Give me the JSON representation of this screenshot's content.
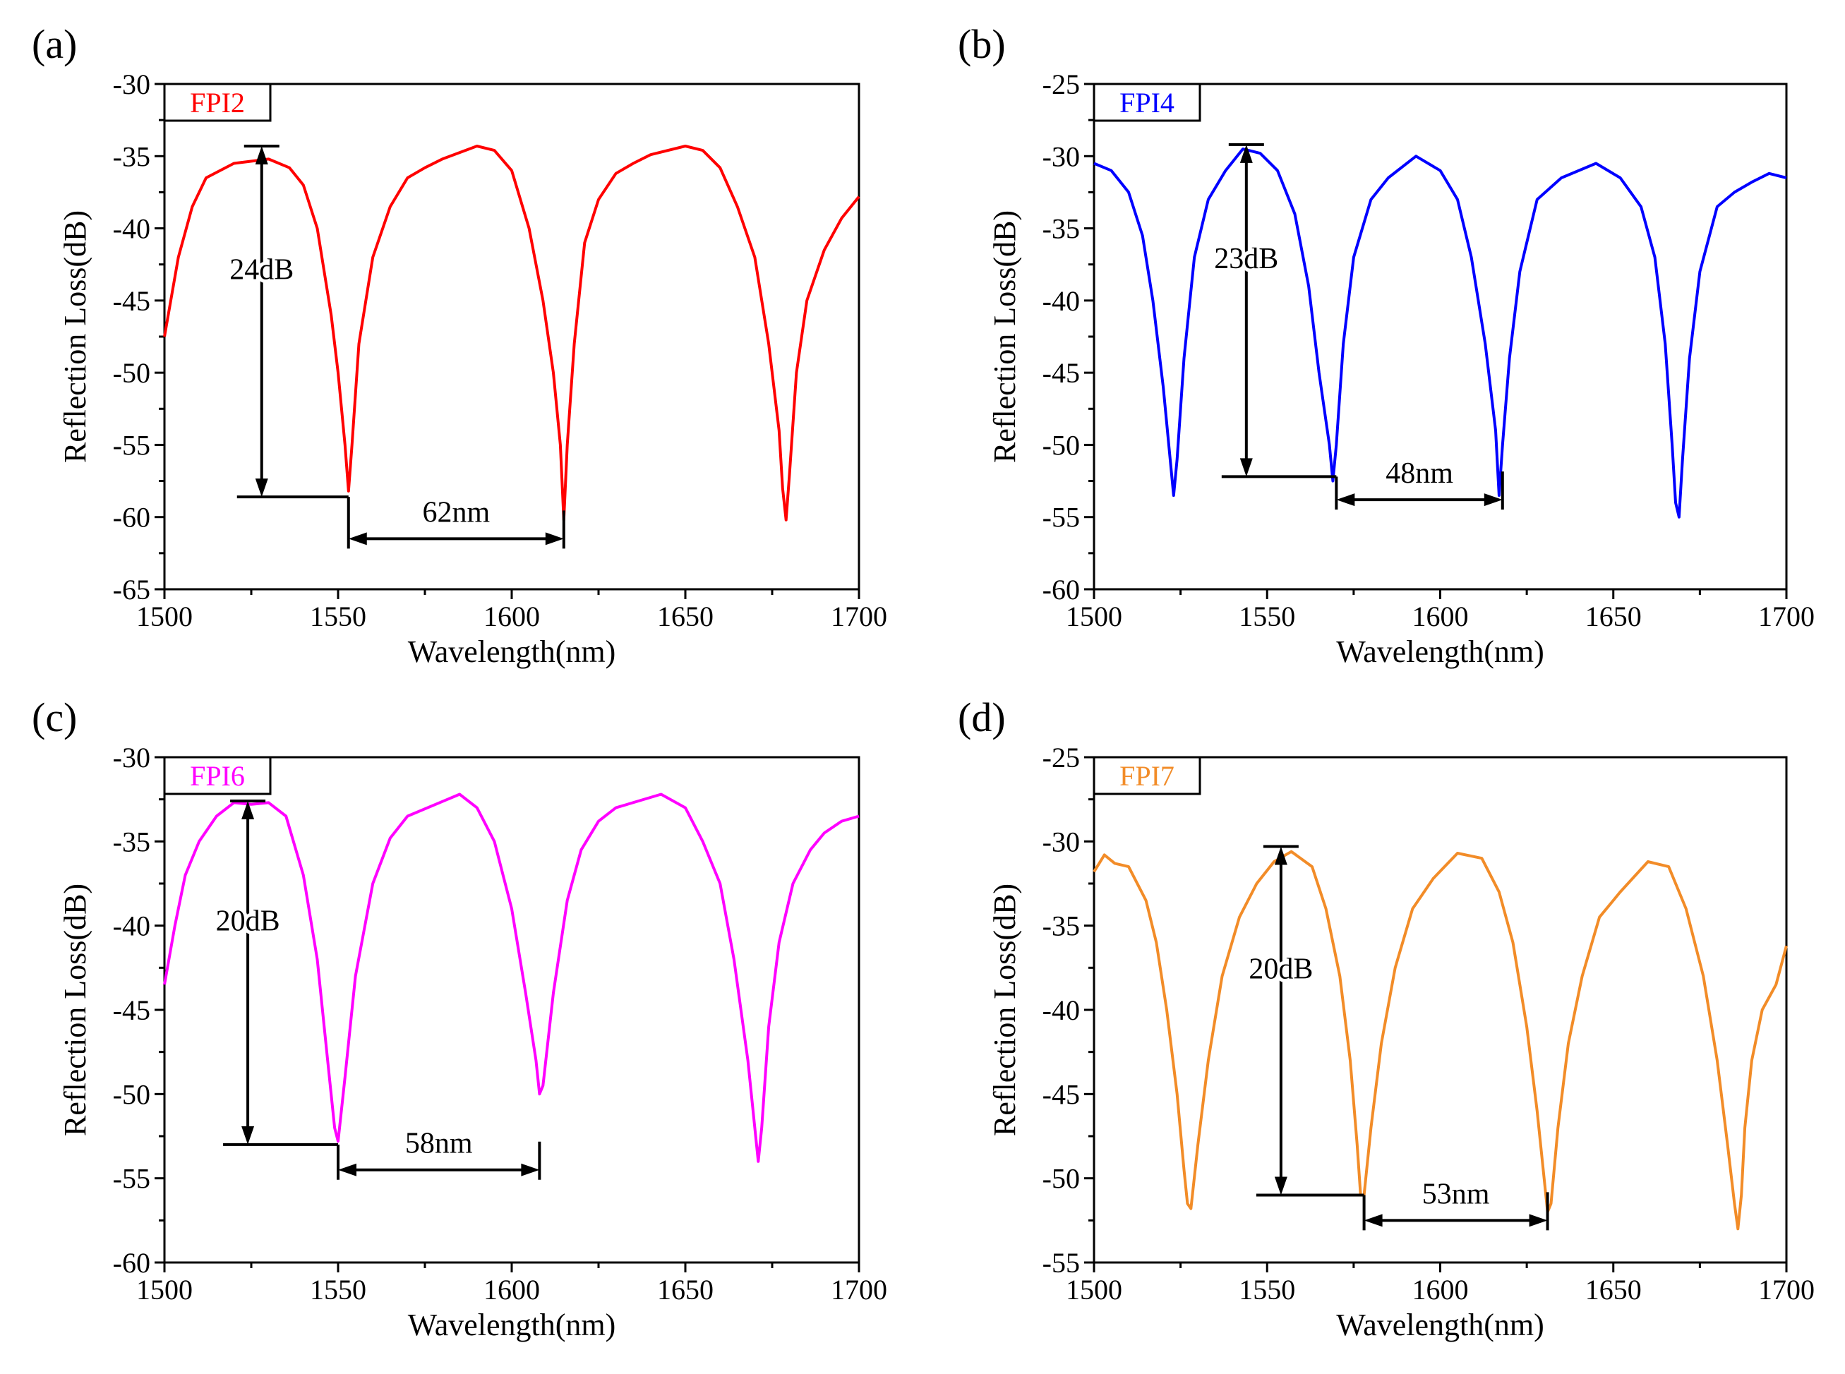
{
  "figure": {
    "xlabel": "Wavelength(nm)",
    "ylabel": "Reflection Loss(dB)"
  },
  "chart_data": [
    {
      "type": "line",
      "panel": "(a)",
      "legend": "FPI2",
      "color": "#ff0000",
      "xlabel": "Wavelength(nm)",
      "ylabel": "Reflection Loss(dB)",
      "xlim": [
        1500,
        1700
      ],
      "ylim": [
        -65,
        -30
      ],
      "xticks": [
        1500,
        1550,
        1600,
        1650,
        1700
      ],
      "yticks": [
        -30,
        -35,
        -40,
        -45,
        -50,
        -55,
        -60,
        -65
      ],
      "series": [
        {
          "name": "FPI2",
          "x": [
            1500,
            1504,
            1508,
            1512,
            1520,
            1530,
            1536,
            1540,
            1544,
            1548,
            1550,
            1552,
            1553,
            1554,
            1556,
            1560,
            1565,
            1570,
            1575,
            1580,
            1590,
            1595,
            1600,
            1605,
            1609,
            1612,
            1614,
            1615,
            1616,
            1618,
            1621,
            1625,
            1630,
            1635,
            1640,
            1650,
            1655,
            1660,
            1665,
            1670,
            1674,
            1677,
            1678,
            1679,
            1680,
            1682,
            1685,
            1690,
            1695,
            1700
          ],
          "y": [
            -47.5,
            -42,
            -38.5,
            -36.5,
            -35.5,
            -35.2,
            -35.8,
            -37,
            -40,
            -46,
            -50,
            -55,
            -58.2,
            -55,
            -48,
            -42,
            -38.5,
            -36.5,
            -35.8,
            -35.2,
            -34.3,
            -34.6,
            -36,
            -40,
            -45,
            -50,
            -55,
            -60.2,
            -55,
            -48,
            -41,
            -38,
            -36.2,
            -35.5,
            -34.9,
            -34.3,
            -34.6,
            -35.8,
            -38.5,
            -42,
            -48,
            -54,
            -58,
            -60.2,
            -57,
            -50,
            -45,
            -41.5,
            -39.3,
            -37.8
          ]
        }
      ],
      "annotations": [
        {
          "text": "24dB",
          "type": "vertical-arrow",
          "x": 1528,
          "y1": -34.3,
          "y2": -58.6
        },
        {
          "text": "62nm",
          "type": "horizontal-arrow",
          "x1": 1553,
          "x2": 1615,
          "y": -61.5
        }
      ]
    },
    {
      "type": "line",
      "panel": "(b)",
      "legend": "FPI4",
      "color": "#0000ff",
      "xlabel": "Wavelength(nm)",
      "ylabel": "Reflection Loss(dB)",
      "xlim": [
        1500,
        1700
      ],
      "ylim": [
        -60,
        -25
      ],
      "xticks": [
        1500,
        1550,
        1600,
        1650,
        1700
      ],
      "yticks": [
        -25,
        -30,
        -35,
        -40,
        -45,
        -50,
        -55,
        -60
      ],
      "series": [
        {
          "name": "FPI4",
          "x": [
            1500,
            1505,
            1510,
            1514,
            1517,
            1520,
            1522,
            1523,
            1524,
            1526,
            1529,
            1533,
            1538,
            1543,
            1548,
            1553,
            1558,
            1562,
            1565,
            1568,
            1569,
            1570,
            1572,
            1575,
            1580,
            1585,
            1593,
            1600,
            1605,
            1609,
            1613,
            1616,
            1617,
            1618,
            1620,
            1623,
            1628,
            1635,
            1645,
            1652,
            1658,
            1662,
            1665,
            1667,
            1668,
            1669,
            1670,
            1672,
            1675,
            1680,
            1685,
            1690,
            1695,
            1700
          ],
          "y": [
            -30.5,
            -31,
            -32.5,
            -35.5,
            -40,
            -46,
            -51,
            -53.5,
            -51,
            -44,
            -37,
            -33,
            -31,
            -29.5,
            -29.8,
            -31,
            -34,
            -39,
            -45,
            -50,
            -52.5,
            -50,
            -43,
            -37,
            -33,
            -31.5,
            -30,
            -31,
            -33,
            -37,
            -43,
            -49,
            -53.5,
            -50,
            -44,
            -38,
            -33,
            -31.5,
            -30.5,
            -31.5,
            -33.5,
            -37,
            -43,
            -50,
            -54,
            -55,
            -51,
            -44,
            -38,
            -33.5,
            -32.5,
            -31.8,
            -31.2,
            -31.5
          ]
        }
      ],
      "annotations": [
        {
          "text": "23dB",
          "type": "vertical-arrow",
          "x": 1544,
          "y1": -29.2,
          "y2": -52.2
        },
        {
          "text": "48nm",
          "type": "horizontal-arrow",
          "x1": 1570,
          "x2": 1618,
          "y": -53.8
        }
      ]
    },
    {
      "type": "line",
      "panel": "(c)",
      "legend": "FPI6",
      "color": "#ff00ff",
      "xlabel": "Wavelength(nm)",
      "ylabel": "Reflection Loss(dB)",
      "xlim": [
        1500,
        1700
      ],
      "ylim": [
        -60,
        -30
      ],
      "xticks": [
        1500,
        1550,
        1600,
        1650,
        1700
      ],
      "yticks": [
        -30,
        -35,
        -40,
        -45,
        -50,
        -55,
        -60
      ],
      "series": [
        {
          "name": "FPI6",
          "x": [
            1500,
            1503,
            1506,
            1510,
            1515,
            1520,
            1525,
            1530,
            1535,
            1540,
            1544,
            1547,
            1549,
            1550,
            1552,
            1555,
            1560,
            1565,
            1570,
            1585,
            1590,
            1595,
            1600,
            1604,
            1607,
            1608,
            1609,
            1612,
            1616,
            1620,
            1625,
            1630,
            1643,
            1650,
            1655,
            1660,
            1664,
            1668,
            1670,
            1671,
            1672,
            1674,
            1677,
            1681,
            1686,
            1690,
            1695,
            1700
          ],
          "y": [
            -43.5,
            -40,
            -37,
            -35,
            -33.5,
            -32.7,
            -32.8,
            -32.7,
            -33.5,
            -37,
            -42,
            -48,
            -52,
            -52.8,
            -49,
            -43,
            -37.5,
            -34.8,
            -33.5,
            -32.2,
            -33,
            -35,
            -39,
            -44,
            -48,
            -50,
            -49.5,
            -44,
            -38.5,
            -35.5,
            -33.8,
            -33,
            -32.2,
            -33,
            -35,
            -37.5,
            -42,
            -48,
            -52,
            -54,
            -52,
            -46,
            -41,
            -37.5,
            -35.5,
            -34.5,
            -33.8,
            -33.5
          ]
        }
      ],
      "annotations": [
        {
          "text": "20dB",
          "type": "vertical-arrow",
          "x": 1524,
          "y1": -32.6,
          "y2": -53.0
        },
        {
          "text": "58nm",
          "type": "horizontal-arrow",
          "x1": 1550,
          "x2": 1608,
          "y": -54.5
        }
      ]
    },
    {
      "type": "line",
      "panel": "(d)",
      "legend": "FPI7",
      "color": "#f28c28",
      "xlabel": "Wavelength(nm)",
      "ylabel": "Reflection Loss(dB)",
      "xlim": [
        1500,
        1700
      ],
      "ylim": [
        -55,
        -25
      ],
      "xticks": [
        1500,
        1550,
        1600,
        1650,
        1700
      ],
      "yticks": [
        -25,
        -30,
        -35,
        -40,
        -45,
        -50,
        -55
      ],
      "series": [
        {
          "name": "FPI7",
          "x": [
            1500,
            1503,
            1506,
            1510,
            1515,
            1518,
            1521,
            1524,
            1526,
            1527,
            1528,
            1530,
            1533,
            1537,
            1542,
            1547,
            1552,
            1557,
            1563,
            1567,
            1571,
            1574,
            1576,
            1577,
            1578,
            1580,
            1583,
            1587,
            1592,
            1598,
            1605,
            1612,
            1617,
            1621,
            1625,
            1628,
            1630,
            1631,
            1632,
            1634,
            1637,
            1641,
            1646,
            1652,
            1660,
            1666,
            1671,
            1676,
            1680,
            1683,
            1685,
            1686,
            1687,
            1688,
            1690,
            1693,
            1697,
            1700
          ],
          "y": [
            -31.8,
            -30.8,
            -31.3,
            -31.5,
            -33.5,
            -36,
            -40,
            -45,
            -49.5,
            -51.5,
            -51.8,
            -48,
            -43,
            -38,
            -34.5,
            -32.5,
            -31.2,
            -30.6,
            -31.5,
            -34,
            -38,
            -43,
            -48,
            -51,
            -51,
            -47,
            -42,
            -37.5,
            -34,
            -32.2,
            -30.7,
            -31,
            -33,
            -36,
            -41,
            -46,
            -50,
            -52,
            -51.5,
            -47,
            -42,
            -38,
            -34.5,
            -33,
            -31.2,
            -31.5,
            -34,
            -38,
            -43,
            -48,
            -51.5,
            -53,
            -51,
            -47,
            -43,
            -40,
            -38.5,
            -36.2
          ]
        }
      ],
      "annotations": [
        {
          "text": "20dB",
          "type": "vertical-arrow",
          "x": 1554,
          "y1": -30.3,
          "y2": -51.0
        },
        {
          "text": "53nm",
          "type": "horizontal-arrow",
          "x1": 1578,
          "x2": 1631,
          "y": -52.5
        }
      ]
    }
  ]
}
